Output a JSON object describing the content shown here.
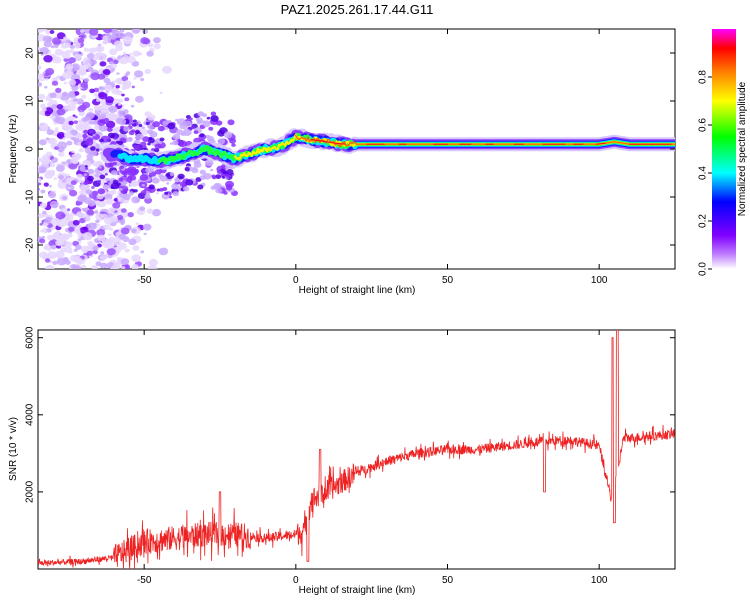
{
  "title": "PAZ1.2025.261.17.44.G11",
  "chart_data": [
    {
      "type": "heatmap",
      "xlabel": "Height of straight line (km)",
      "ylabel": "Frequency (Hz)",
      "xlim": [
        -85,
        125
      ],
      "ylim": [
        -25,
        25
      ],
      "xticks": [
        -50,
        0,
        50,
        100
      ],
      "yticks": [
        -20,
        -10,
        0,
        10,
        20
      ],
      "colorbar": {
        "label": "Normalized spectral amplitude",
        "range": [
          0,
          1
        ],
        "ticks": [
          0.0,
          0.2,
          0.4,
          0.6,
          0.8
        ],
        "colors": [
          "#ffffff",
          "#8000ff",
          "#0000ff",
          "#00ffff",
          "#00ff00",
          "#ffff00",
          "#ff8000",
          "#ff0000",
          "#ff00ff"
        ]
      },
      "ridge": {
        "x": [
          -60,
          -55,
          -50,
          -45,
          -40,
          -35,
          -30,
          -25,
          -20,
          -15,
          -10,
          -5,
          0,
          5,
          10,
          15,
          20,
          40,
          60,
          80,
          100,
          105,
          110,
          125
        ],
        "frequency": [
          -1,
          -2,
          -2,
          -2.5,
          -2,
          -1,
          0,
          -1,
          -2,
          -1,
          0,
          0.5,
          2.5,
          2,
          1.5,
          1,
          1,
          1,
          1,
          1,
          1,
          1.5,
          1,
          1
        ]
      }
    },
    {
      "type": "line",
      "xlabel": "Height of straight line (km)",
      "ylabel": "SNR (10 * v/v)",
      "xlim": [
        -85,
        125
      ],
      "ylim": [
        0,
        6200
      ],
      "xticks": [
        -50,
        0,
        50,
        100
      ],
      "yticks": [
        2000,
        4000,
        6000
      ],
      "color": "#ee2222",
      "baseline": {
        "x": [
          -85,
          -70,
          -60,
          -50,
          -40,
          -30,
          -20,
          -10,
          0,
          3,
          5,
          10,
          20,
          30,
          40,
          50,
          60,
          70,
          80,
          90,
          100,
          102,
          104,
          106,
          108,
          110,
          125
        ],
        "snr": [
          150,
          200,
          300,
          700,
          800,
          900,
          900,
          800,
          900,
          1000,
          1800,
          2000,
          2500,
          2800,
          3000,
          3100,
          3100,
          3200,
          3300,
          3350,
          3200,
          2500,
          1800,
          2500,
          3400,
          3400,
          3500
        ]
      },
      "spikes": [
        {
          "x": 104.5,
          "snr": 6000
        },
        {
          "x": 106,
          "snr": 6200
        },
        {
          "x": 105,
          "snr": 1200
        },
        {
          "x": 82,
          "snr": 2000
        },
        {
          "x": 8,
          "snr": 3100
        },
        {
          "x": 4,
          "snr": 200
        },
        {
          "x": -25,
          "snr": 2000
        }
      ]
    }
  ]
}
